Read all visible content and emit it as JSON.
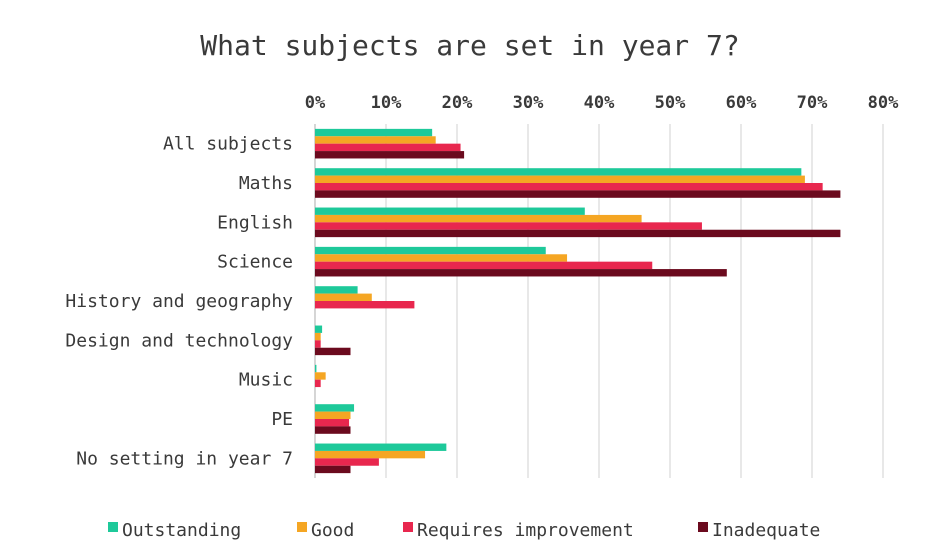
{
  "chart_data": {
    "type": "bar",
    "orientation": "horizontal",
    "title": "What subjects are set in year 7?",
    "xlabel": "",
    "ylabel": "",
    "xlim": [
      0,
      80
    ],
    "x_ticks": [
      "0%",
      "10%",
      "20%",
      "30%",
      "40%",
      "50%",
      "60%",
      "70%",
      "80%"
    ],
    "grid": "vertical",
    "legend_position": "bottom",
    "categories": [
      "All subjects",
      "Maths",
      "English",
      "Science",
      "History and geography",
      "Design and technology",
      "Music",
      "PE",
      "No setting in year 7"
    ],
    "series": [
      {
        "name": "Outstanding",
        "color": "#1ec99a",
        "values": [
          16.5,
          68.5,
          38,
          32.5,
          6,
          1,
          0.2,
          5.5,
          18.5
        ]
      },
      {
        "name": "Good",
        "color": "#f5a623",
        "values": [
          17,
          69,
          46,
          35.5,
          8,
          0.8,
          1.5,
          5,
          15.5
        ]
      },
      {
        "name": "Requires improvement",
        "color": "#e8274e",
        "values": [
          20.5,
          71.5,
          54.5,
          47.5,
          14,
          0.8,
          0.8,
          4.8,
          9
        ]
      },
      {
        "name": "Inadequate",
        "color": "#6b0a1e",
        "values": [
          21,
          74,
          74,
          58,
          0,
          5,
          0,
          5,
          5
        ]
      }
    ]
  }
}
